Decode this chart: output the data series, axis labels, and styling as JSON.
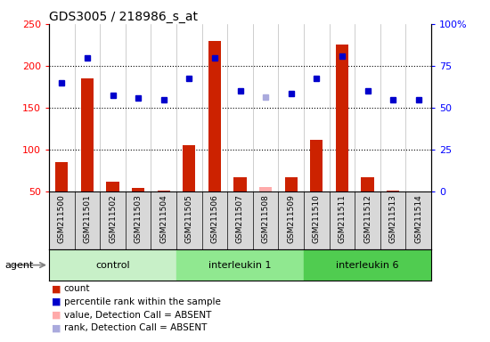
{
  "title": "GDS3005 / 218986_s_at",
  "samples": [
    "GSM211500",
    "GSM211501",
    "GSM211502",
    "GSM211503",
    "GSM211504",
    "GSM211505",
    "GSM211506",
    "GSM211507",
    "GSM211508",
    "GSM211509",
    "GSM211510",
    "GSM211511",
    "GSM211512",
    "GSM211513",
    "GSM211514"
  ],
  "groups": [
    {
      "label": "control",
      "start": 0,
      "end": 5,
      "color": "#c8f0c8"
    },
    {
      "label": "interleukin 1",
      "start": 5,
      "end": 10,
      "color": "#90e890"
    },
    {
      "label": "interleukin 6",
      "start": 10,
      "end": 15,
      "color": "#50cc50"
    }
  ],
  "bar_values": [
    85,
    185,
    62,
    54,
    51,
    105,
    230,
    67,
    55,
    67,
    112,
    225,
    67,
    51,
    50
  ],
  "bar_absent": [
    false,
    false,
    false,
    false,
    false,
    false,
    false,
    false,
    true,
    false,
    false,
    false,
    false,
    false,
    false
  ],
  "rank_values": [
    180,
    210,
    165,
    162,
    160,
    185,
    210,
    170,
    163,
    167,
    185,
    212,
    170,
    160,
    160
  ],
  "rank_absent": [
    false,
    false,
    false,
    false,
    false,
    false,
    false,
    false,
    true,
    false,
    false,
    false,
    false,
    false,
    false
  ],
  "ylim_left": [
    50,
    250
  ],
  "ylim_right": [
    0,
    100
  ],
  "yticks_left": [
    50,
    100,
    150,
    200,
    250
  ],
  "yticks_right": [
    0,
    25,
    50,
    75,
    100
  ],
  "yticklabels_right": [
    "0",
    "25",
    "50",
    "75",
    "100%"
  ],
  "bar_color": "#cc2200",
  "bar_absent_color": "#ffaaaa",
  "rank_color": "#0000cc",
  "rank_absent_color": "#aaaadd",
  "col_sep_color": "#bbbbbb",
  "agent_label": "agent",
  "legend_items": [
    {
      "label": "count",
      "color": "#cc2200",
      "marker": "s"
    },
    {
      "label": "percentile rank within the sample",
      "color": "#0000cc",
      "marker": "s"
    },
    {
      "label": "value, Detection Call = ABSENT",
      "color": "#ffaaaa",
      "marker": "s"
    },
    {
      "label": "rank, Detection Call = ABSENT",
      "color": "#aaaadd",
      "marker": "s"
    }
  ]
}
